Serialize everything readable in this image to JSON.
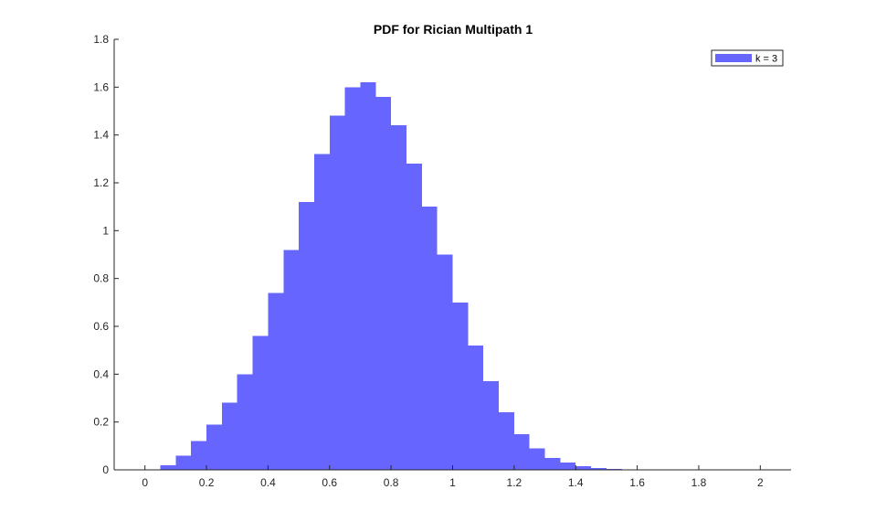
{
  "chart_data": {
    "type": "bar",
    "subtype": "histogram",
    "title": "PDF for Rician Multipath 1",
    "xlabel": "",
    "ylabel": "",
    "xlim": [
      -0.1,
      2.1
    ],
    "ylim": [
      0,
      1.8
    ],
    "x_ticks": [
      0,
      0.2,
      0.4,
      0.6,
      0.8,
      1,
      1.2,
      1.4,
      1.6,
      1.8,
      2
    ],
    "y_ticks": [
      0,
      0.2,
      0.4,
      0.6,
      0.8,
      1,
      1.2,
      1.4,
      1.6,
      1.8
    ],
    "x_tick_labels": [
      "0",
      "0.2",
      "0.4",
      "0.6",
      "0.8",
      "1",
      "1.2",
      "1.4",
      "1.6",
      "1.8",
      "2"
    ],
    "y_tick_labels": [
      "0",
      "0.2",
      "0.4",
      "0.6",
      "0.8",
      "1",
      "1.2",
      "1.4",
      "1.6",
      "1.8"
    ],
    "grid": false,
    "legend_position": "top-right",
    "bar_color": "#6666ff",
    "series": [
      {
        "name": "k = 3",
        "color": "#6666ff",
        "x": [
          0.0,
          0.05,
          0.1,
          0.15,
          0.2,
          0.25,
          0.3,
          0.35,
          0.4,
          0.45,
          0.5,
          0.55,
          0.6,
          0.65,
          0.7,
          0.75,
          0.8,
          0.85,
          0.9,
          0.95,
          1.0,
          1.05,
          1.1,
          1.15,
          1.2,
          1.25,
          1.3,
          1.35,
          1.4,
          1.45,
          1.5,
          1.55,
          1.6,
          1.65,
          1.7
        ],
        "values": [
          0.0,
          0.02,
          0.06,
          0.12,
          0.19,
          0.28,
          0.4,
          0.56,
          0.74,
          0.92,
          1.12,
          1.32,
          1.48,
          1.6,
          1.62,
          1.56,
          1.44,
          1.28,
          1.1,
          0.9,
          0.7,
          0.52,
          0.37,
          0.24,
          0.15,
          0.09,
          0.05,
          0.03,
          0.015,
          0.008,
          0.004,
          0.002,
          0.001,
          0.0005,
          0.0
        ]
      }
    ]
  }
}
